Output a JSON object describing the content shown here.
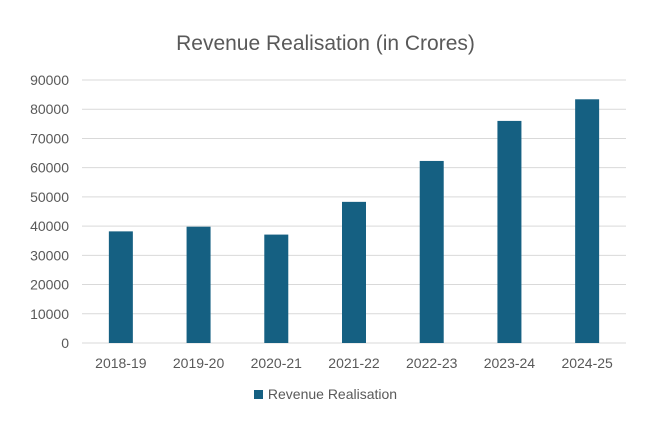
{
  "chart_data": {
    "type": "bar",
    "title": "Revenue Realisation (in Crores)",
    "xlabel": "",
    "ylabel": "",
    "categories": [
      "2018-19",
      "2019-20",
      "2020-21",
      "2021-22",
      "2022-23",
      "2023-24",
      "2024-25"
    ],
    "series": [
      {
        "name": "Revenue Realisation",
        "values": [
          38200,
          39800,
          37100,
          48300,
          62300,
          76000,
          83400
        ],
        "color": "#156082"
      }
    ],
    "ylim": [
      0,
      90000
    ],
    "yticks": [
      0,
      10000,
      20000,
      30000,
      40000,
      50000,
      60000,
      70000,
      80000,
      90000
    ],
    "grid": true,
    "legend_position": "bottom"
  }
}
